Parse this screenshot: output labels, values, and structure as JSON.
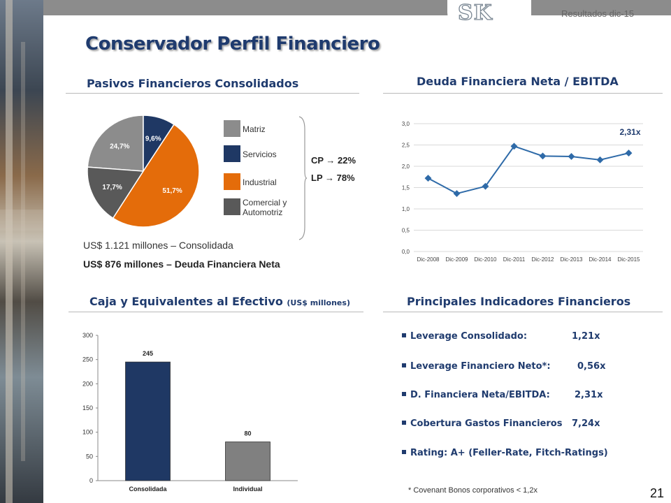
{
  "header": {
    "period": "Resultados dic-15",
    "logo_text": "SK"
  },
  "title": "Conservador Perfil Financiero",
  "sections": {
    "pasivos": "Pasivos Financieros Consolidados",
    "deuda": "Deuda Financiera Neta / EBITDA",
    "caja": "Caja y Equivalentes al Efectivo",
    "caja_unit": "(US$ millones)",
    "indicadores": "Principales Indicadores Financieros"
  },
  "pasivos": {
    "cp": "CP → 22%",
    "lp": "LP → 78%",
    "note_consolidada": "US$ 1.121 millones – Consolidada",
    "note_deuda": "US$ 876 millones  – Deuda Financiera Neta",
    "legend": [
      {
        "label": "Matriz",
        "color": "#8c8c8c"
      },
      {
        "label": "Servicios",
        "color": "#1f3864"
      },
      {
        "label": "Industrial",
        "color": "#e46c0a"
      },
      {
        "label": "Comercial y Automotriz",
        "color": "#595959"
      }
    ]
  },
  "indicadores": [
    {
      "label": "Leverage Consolidado:",
      "value": "1,21x"
    },
    {
      "label": "Leverage Financiero Neto*:",
      "value": "0,56x"
    },
    {
      "label": "D. Financiera Neta/EBITDA:",
      "value": "2,31x"
    },
    {
      "label": "Cobertura Gastos Financieros",
      "value": "7,24x"
    },
    {
      "label": "Rating: A+ (Feller-Rate, Fitch-Ratings)",
      "value": ""
    }
  ],
  "footnote": "* Covenant Bonos corporativos < 1,2x",
  "page_number": "21",
  "colors": {
    "navy": "#1f3864",
    "orange": "#e46c0a",
    "grey": "#8c8c8c",
    "dark_grey": "#595959",
    "title": "#1f3b6e",
    "line": "#2e6aa8"
  },
  "chart_data": [
    {
      "type": "pie",
      "labels": [
        "Matriz",
        "Servicios",
        "Industrial",
        "Comercial y Automotriz"
      ],
      "values": [
        24.7,
        9.6,
        51.7,
        17.7
      ],
      "value_labels": [
        "24,7%",
        "9,6%",
        "51,7%",
        "17,7%"
      ],
      "colors": [
        "#8c8c8c",
        "#1f3864",
        "#e46c0a",
        "#595959"
      ],
      "title": "Pasivos Financieros Consolidados"
    },
    {
      "type": "line",
      "title": "Deuda Financiera Neta / EBITDA",
      "x": [
        "Dic-2008",
        "Dic-2009",
        "Dic-2010",
        "Dic-2011",
        "Dic-2012",
        "Dic-2013",
        "Dic-2014",
        "Dic-2015"
      ],
      "values": [
        1.72,
        1.36,
        1.53,
        2.47,
        2.24,
        2.23,
        2.15,
        2.31
      ],
      "ylim": [
        0,
        3.0
      ],
      "yticks": [
        "0,0",
        "0,5",
        "1,0",
        "1,5",
        "2,0",
        "2,5",
        "3,0"
      ],
      "last_label": "2,31x",
      "color": "#2e6aa8"
    },
    {
      "type": "bar",
      "title": "Caja y Equivalentes al Efectivo",
      "ylabel": "(US$ millones)",
      "categories": [
        "Consolidada",
        "Individual"
      ],
      "values": [
        245,
        80
      ],
      "value_labels": [
        "245",
        "80"
      ],
      "colors": [
        "#1f3864",
        "#808080"
      ],
      "ylim": [
        0,
        300
      ],
      "yticks": [
        "0",
        "50",
        "100",
        "150",
        "200",
        "250",
        "300"
      ]
    }
  ]
}
